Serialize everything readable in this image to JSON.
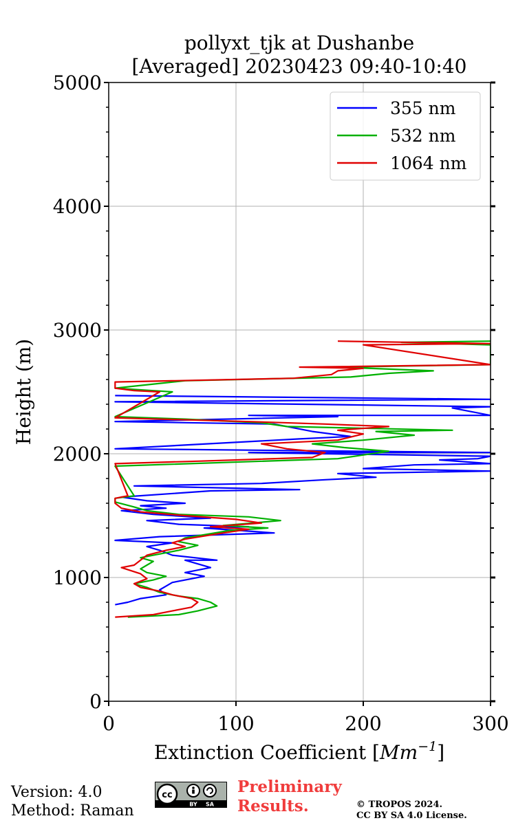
{
  "chart_data": {
    "type": "line",
    "title_line1": "pollyxt_tjk at Dushanbe",
    "title_line2": "[Averaged] 20230423 09:40-10:40",
    "xlabel_main": "Extinction Coefficient [",
    "xlabel_unit": "Mm",
    "xlabel_exp": "−1",
    "xlabel_close": "]",
    "ylabel": "Height (m)",
    "xlim": [
      0,
      300
    ],
    "ylim": [
      0,
      5000
    ],
    "xticks": [
      0,
      100,
      200,
      300
    ],
    "yticks": [
      0,
      1000,
      2000,
      3000,
      4000,
      5000
    ],
    "xtick_labels": [
      "0",
      "100",
      "200",
      "300"
    ],
    "ytick_labels": [
      "0",
      "1000",
      "2000",
      "3000",
      "4000",
      "5000"
    ],
    "grid": true,
    "legend_position": "top-right",
    "series": [
      {
        "name": "355 nm",
        "color": "#0000ff",
        "points": [
          [
            5,
            780
          ],
          [
            15,
            800
          ],
          [
            25,
            830
          ],
          [
            45,
            860
          ],
          [
            40,
            900
          ],
          [
            45,
            930
          ],
          [
            50,
            960
          ],
          [
            65,
            990
          ],
          [
            75,
            1010
          ],
          [
            60,
            1040
          ],
          [
            70,
            1060
          ],
          [
            80,
            1080
          ],
          [
            70,
            1110
          ],
          [
            60,
            1140
          ],
          [
            85,
            1140
          ],
          [
            50,
            1180
          ],
          [
            40,
            1220
          ],
          [
            30,
            1250
          ],
          [
            50,
            1280
          ],
          [
            5,
            1300
          ],
          [
            40,
            1330
          ],
          [
            130,
            1360
          ],
          [
            75,
            1400
          ],
          [
            110,
            1410
          ],
          [
            55,
            1430
          ],
          [
            30,
            1460
          ],
          [
            80,
            1480
          ],
          [
            35,
            1510
          ],
          [
            10,
            1540
          ],
          [
            45,
            1560
          ],
          [
            25,
            1580
          ],
          [
            60,
            1600
          ],
          [
            30,
            1620
          ],
          [
            10,
            1650
          ],
          [
            80,
            1700
          ],
          [
            150,
            1710
          ],
          [
            20,
            1740
          ],
          [
            120,
            1760
          ],
          [
            170,
            1790
          ],
          [
            210,
            1810
          ],
          [
            180,
            1840
          ],
          [
            300,
            1860
          ],
          [
            200,
            1880
          ],
          [
            240,
            1910
          ],
          [
            300,
            1920
          ],
          [
            260,
            1950
          ],
          [
            290,
            1960
          ],
          [
            300,
            1980
          ],
          [
            170,
            2000
          ],
          [
            110,
            2010
          ],
          [
            300,
            2010
          ],
          [
            5,
            2040
          ],
          [
            150,
            2120
          ],
          [
            190,
            2140
          ],
          [
            160,
            2180
          ],
          [
            130,
            2240
          ],
          [
            5,
            2260
          ],
          [
            180,
            2300
          ],
          [
            110,
            2310
          ],
          [
            300,
            2310
          ],
          [
            270,
            2370
          ],
          [
            300,
            2380
          ],
          [
            5,
            2420
          ],
          [
            300,
            2440
          ],
          [
            5,
            2470
          ]
        ]
      },
      {
        "name": "532 nm",
        "color": "#00b000",
        "points": [
          [
            15,
            680
          ],
          [
            55,
            700
          ],
          [
            70,
            730
          ],
          [
            85,
            770
          ],
          [
            80,
            800
          ],
          [
            70,
            830
          ],
          [
            55,
            850
          ],
          [
            40,
            880
          ],
          [
            30,
            920
          ],
          [
            20,
            950
          ],
          [
            35,
            980
          ],
          [
            45,
            1010
          ],
          [
            30,
            1040
          ],
          [
            25,
            1070
          ],
          [
            30,
            1100
          ],
          [
            35,
            1130
          ],
          [
            25,
            1160
          ],
          [
            40,
            1190
          ],
          [
            55,
            1220
          ],
          [
            70,
            1260
          ],
          [
            55,
            1290
          ],
          [
            60,
            1320
          ],
          [
            95,
            1380
          ],
          [
            125,
            1400
          ],
          [
            90,
            1420
          ],
          [
            135,
            1460
          ],
          [
            110,
            1490
          ],
          [
            55,
            1510
          ],
          [
            30,
            1540
          ],
          [
            20,
            1570
          ],
          [
            5,
            1610
          ],
          [
            5,
            1640
          ],
          [
            20,
            1660
          ],
          [
            5,
            1900
          ],
          [
            180,
            1960
          ],
          [
            200,
            1990
          ],
          [
            220,
            2020
          ],
          [
            185,
            2050
          ],
          [
            160,
            2080
          ],
          [
            200,
            2110
          ],
          [
            240,
            2150
          ],
          [
            210,
            2180
          ],
          [
            270,
            2190
          ],
          [
            140,
            2220
          ],
          [
            120,
            2250
          ],
          [
            60,
            2280
          ],
          [
            5,
            2300
          ],
          [
            50,
            2500
          ],
          [
            35,
            2510
          ],
          [
            5,
            2530
          ],
          [
            60,
            2590
          ],
          [
            190,
            2620
          ],
          [
            220,
            2650
          ],
          [
            255,
            2670
          ],
          [
            180,
            2700
          ],
          [
            240,
            2710
          ],
          [
            300,
            2720
          ],
          [
            300,
            2880
          ],
          [
            230,
            2900
          ],
          [
            300,
            2910
          ]
        ]
      },
      {
        "name": "1064 nm",
        "color": "#e00000",
        "points": [
          [
            5,
            680
          ],
          [
            35,
            700
          ],
          [
            50,
            730
          ],
          [
            65,
            760
          ],
          [
            70,
            800
          ],
          [
            65,
            830
          ],
          [
            50,
            860
          ],
          [
            40,
            890
          ],
          [
            25,
            920
          ],
          [
            20,
            950
          ],
          [
            30,
            990
          ],
          [
            25,
            1030
          ],
          [
            10,
            1080
          ],
          [
            20,
            1100
          ],
          [
            25,
            1140
          ],
          [
            30,
            1180
          ],
          [
            45,
            1220
          ],
          [
            60,
            1250
          ],
          [
            50,
            1280
          ],
          [
            60,
            1310
          ],
          [
            90,
            1360
          ],
          [
            110,
            1390
          ],
          [
            80,
            1410
          ],
          [
            120,
            1440
          ],
          [
            100,
            1470
          ],
          [
            60,
            1500
          ],
          [
            25,
            1530
          ],
          [
            10,
            1560
          ],
          [
            5,
            1600
          ],
          [
            5,
            1640
          ],
          [
            15,
            1660
          ],
          [
            5,
            1920
          ],
          [
            70,
            1940
          ],
          [
            160,
            1970
          ],
          [
            170,
            2010
          ],
          [
            140,
            2040
          ],
          [
            120,
            2080
          ],
          [
            180,
            2110
          ],
          [
            200,
            2160
          ],
          [
            180,
            2190
          ],
          [
            220,
            2220
          ],
          [
            170,
            2240
          ],
          [
            110,
            2260
          ],
          [
            5,
            2290
          ],
          [
            40,
            2500
          ],
          [
            20,
            2510
          ],
          [
            5,
            2530
          ],
          [
            5,
            2580
          ],
          [
            145,
            2610
          ],
          [
            175,
            2640
          ],
          [
            180,
            2670
          ],
          [
            200,
            2690
          ],
          [
            150,
            2700
          ],
          [
            300,
            2720
          ],
          [
            200,
            2880
          ],
          [
            300,
            2890
          ],
          [
            180,
            2910
          ]
        ]
      }
    ]
  },
  "footer": {
    "version": "Version: 4.0",
    "method": "Method: Raman",
    "preliminary_line1": "Preliminary",
    "preliminary_line2": "Results.",
    "copyright_line1": "© TROPOS 2024.",
    "copyright_line2": "CC BY SA 4.0 License.",
    "badge_cc": "cc",
    "badge_by": "BY",
    "badge_sa": "SA"
  }
}
